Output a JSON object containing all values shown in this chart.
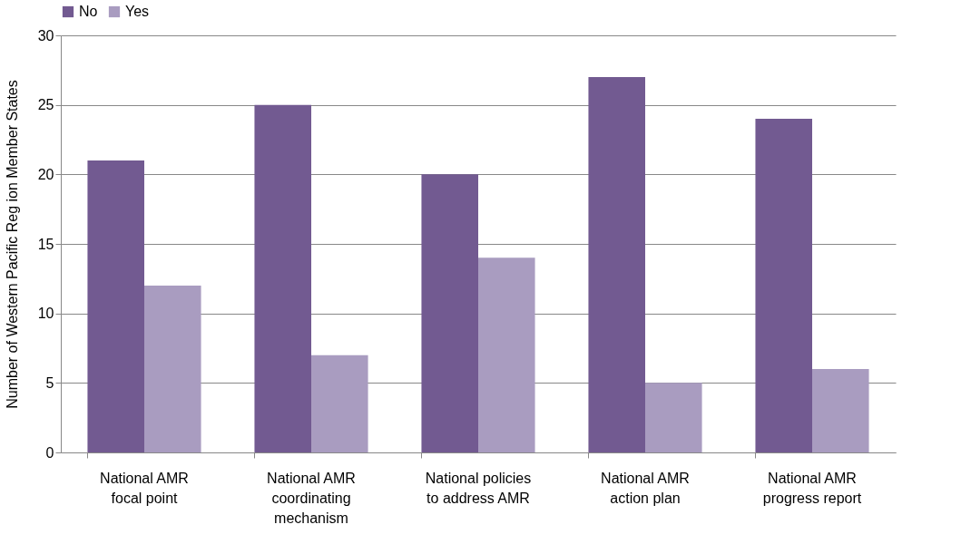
{
  "chart_data": {
    "type": "bar",
    "ylabel": "Number of Western Pacific Reg ion  Member States",
    "categories": [
      "National AMR focal point",
      "National AMR coordinating mechanism",
      "National policies to address AMR",
      "National AMR action plan",
      "National AMR progress report"
    ],
    "series": [
      {
        "name": "No",
        "color": "#725a91",
        "values": [
          21,
          25,
          20,
          27,
          24
        ]
      },
      {
        "name": "Yes",
        "color": "#a99cc0",
        "values": [
          12,
          7,
          14,
          5,
          6
        ]
      }
    ],
    "ylim": [
      0,
      30
    ],
    "yticks": [
      0,
      5,
      10,
      15,
      20,
      25,
      30
    ],
    "grid": "y",
    "legend": "top"
  }
}
